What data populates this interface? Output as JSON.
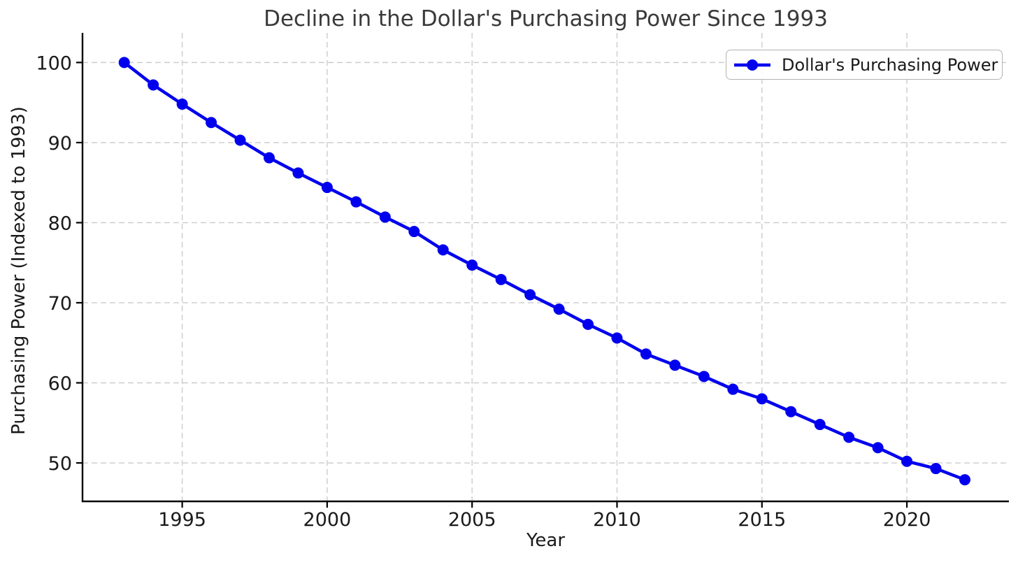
{
  "chart_data": {
    "type": "line",
    "title": "Decline in the Dollar's Purchasing Power Since 1993",
    "xlabel": "Year",
    "ylabel": "Purchasing Power (Indexed to 1993)",
    "x": [
      1993,
      1994,
      1995,
      1996,
      1997,
      1998,
      1999,
      2000,
      2001,
      2002,
      2003,
      2004,
      2005,
      2006,
      2007,
      2008,
      2009,
      2010,
      2011,
      2012,
      2013,
      2014,
      2015,
      2016,
      2017,
      2018,
      2019,
      2020,
      2021,
      2022
    ],
    "series": [
      {
        "name": "Dollar's Purchasing Power",
        "color": "#0000ee",
        "marker": "circle",
        "values": [
          100.0,
          97.2,
          94.8,
          92.5,
          90.3,
          88.1,
          86.2,
          84.4,
          82.6,
          80.7,
          78.9,
          76.6,
          74.7,
          72.9,
          71.0,
          69.2,
          67.3,
          65.6,
          63.6,
          62.2,
          60.8,
          59.2,
          58.0,
          56.4,
          54.8,
          53.2,
          51.9,
          50.2,
          49.3,
          47.9
        ]
      }
    ],
    "x_ticks": [
      1995,
      2000,
      2005,
      2010,
      2015,
      2020
    ],
    "y_ticks": [
      50,
      60,
      70,
      80,
      90,
      100
    ],
    "xlim": [
      1991.56,
      2023.52
    ],
    "ylim": [
      45.2,
      103.7
    ],
    "grid": true,
    "grid_style": "dashed",
    "grid_color": "#cccccc",
    "axis_color": "#000000",
    "legend": {
      "label": "Dollar's Purchasing Power",
      "position": "upper right"
    }
  }
}
